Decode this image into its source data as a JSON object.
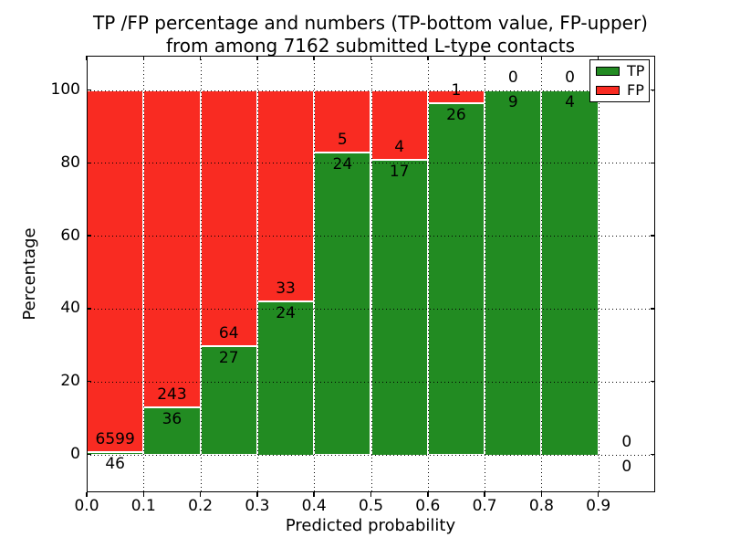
{
  "figure": {
    "title_line1": "TP /FP percentage and numbers (TP-bottom value, FP-upper)",
    "title_line2": "from among 7162 submitted L-type contacts",
    "xlabel": "Predicted probability",
    "ylabel": "Percentage"
  },
  "legend": {
    "items": [
      {
        "label": "TP",
        "color": "#228B22"
      },
      {
        "label": "FP",
        "color": "#F92B22"
      }
    ]
  },
  "chart_data": {
    "type": "bar",
    "subtype": "stacked-100-percent-histogram",
    "title": "TP /FP percentage and numbers (TP-bottom value, FP-upper) from among 7162 submitted L-type contacts",
    "xlabel": "Predicted probability",
    "ylabel": "Percentage",
    "xlim": [
      0.0,
      1.0
    ],
    "ylim": [
      -10,
      110
    ],
    "x_ticks": [
      "0.0",
      "0.1",
      "0.2",
      "0.3",
      "0.4",
      "0.5",
      "0.6",
      "0.7",
      "0.8",
      "0.9"
    ],
    "y_ticks": [
      0,
      20,
      40,
      60,
      80,
      100
    ],
    "grid": true,
    "legend_position": "upper right",
    "bin_width": 0.1,
    "total_contacts": 7162,
    "categories": [
      "0.0-0.1",
      "0.1-0.2",
      "0.2-0.3",
      "0.3-0.4",
      "0.4-0.5",
      "0.5-0.6",
      "0.6-0.7",
      "0.7-0.8",
      "0.8-0.9",
      "0.9-1.0"
    ],
    "series": [
      {
        "name": "TP",
        "color": "#228B22",
        "counts": [
          46,
          36,
          27,
          24,
          24,
          17,
          26,
          9,
          4,
          0
        ]
      },
      {
        "name": "FP",
        "color": "#F92B22",
        "counts": [
          6599,
          243,
          64,
          33,
          5,
          4,
          1,
          0,
          0,
          0
        ]
      }
    ],
    "tp_percentages": [
      0.69,
      12.9,
      29.67,
      42.11,
      82.76,
      80.95,
      96.3,
      100,
      100,
      0
    ]
  }
}
